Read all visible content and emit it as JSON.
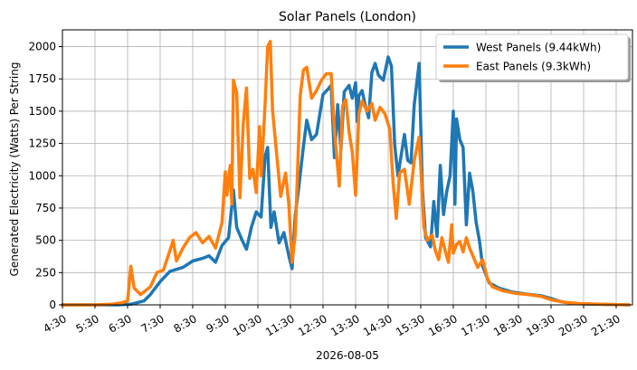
{
  "chart_data": {
    "type": "line",
    "title": "Solar Panels (London)",
    "xlabel": "2026-08-05",
    "ylabel": "Generated Electricity (Watts) Per String",
    "grid": true,
    "legend_position": "top-right",
    "xlim": [
      4.5,
      22.0
    ],
    "ylim": [
      0,
      2130
    ],
    "x_ticks": [
      {
        "value": 4.5,
        "label": "4:30"
      },
      {
        "value": 5.5,
        "label": "5:30"
      },
      {
        "value": 6.5,
        "label": "6:30"
      },
      {
        "value": 7.5,
        "label": "7:30"
      },
      {
        "value": 8.5,
        "label": "8:30"
      },
      {
        "value": 9.5,
        "label": "9:30"
      },
      {
        "value": 10.5,
        "label": "10:30"
      },
      {
        "value": 11.5,
        "label": "11:30"
      },
      {
        "value": 12.5,
        "label": "12:30"
      },
      {
        "value": 13.5,
        "label": "13:30"
      },
      {
        "value": 14.5,
        "label": "14:30"
      },
      {
        "value": 15.5,
        "label": "15:30"
      },
      {
        "value": 16.5,
        "label": "16:30"
      },
      {
        "value": 17.5,
        "label": "17:30"
      },
      {
        "value": 18.5,
        "label": "18:30"
      },
      {
        "value": 19.5,
        "label": "19:30"
      },
      {
        "value": 20.5,
        "label": "20:30"
      },
      {
        "value": 21.5,
        "label": "21:30"
      }
    ],
    "y_ticks": [
      {
        "value": 0,
        "label": "0"
      },
      {
        "value": 250,
        "label": "250"
      },
      {
        "value": 500,
        "label": "500"
      },
      {
        "value": 750,
        "label": "750"
      },
      {
        "value": 1000,
        "label": "1000"
      },
      {
        "value": 1250,
        "label": "1250"
      },
      {
        "value": 1500,
        "label": "1500"
      },
      {
        "value": 1750,
        "label": "1750"
      },
      {
        "value": 2000,
        "label": "2000"
      }
    ],
    "series": [
      {
        "name": "West Panels (9.44kWh)",
        "color": "#1f77b4",
        "points": [
          [
            4.5,
            0
          ],
          [
            5.5,
            0
          ],
          [
            6.2,
            0
          ],
          [
            6.6,
            5
          ],
          [
            7.0,
            30
          ],
          [
            7.2,
            80
          ],
          [
            7.5,
            180
          ],
          [
            7.8,
            260
          ],
          [
            8.2,
            290
          ],
          [
            8.5,
            340
          ],
          [
            8.8,
            360
          ],
          [
            9.0,
            380
          ],
          [
            9.2,
            330
          ],
          [
            9.4,
            460
          ],
          [
            9.6,
            520
          ],
          [
            9.75,
            890
          ],
          [
            9.85,
            600
          ],
          [
            10.0,
            510
          ],
          [
            10.15,
            430
          ],
          [
            10.3,
            600
          ],
          [
            10.45,
            720
          ],
          [
            10.6,
            680
          ],
          [
            10.72,
            1150
          ],
          [
            10.8,
            1220
          ],
          [
            10.9,
            600
          ],
          [
            11.0,
            720
          ],
          [
            11.15,
            480
          ],
          [
            11.3,
            560
          ],
          [
            11.45,
            380
          ],
          [
            11.55,
            280
          ],
          [
            11.65,
            700
          ],
          [
            11.75,
            900
          ],
          [
            11.9,
            1230
          ],
          [
            12.0,
            1430
          ],
          [
            12.15,
            1280
          ],
          [
            12.3,
            1320
          ],
          [
            12.5,
            1630
          ],
          [
            12.65,
            1670
          ],
          [
            12.75,
            1700
          ],
          [
            12.85,
            1140
          ],
          [
            12.95,
            1550
          ],
          [
            13.05,
            1200
          ],
          [
            13.15,
            1650
          ],
          [
            13.3,
            1700
          ],
          [
            13.4,
            1600
          ],
          [
            13.5,
            1720
          ],
          [
            13.55,
            1420
          ],
          [
            13.6,
            1620
          ],
          [
            13.7,
            1660
          ],
          [
            13.8,
            1540
          ],
          [
            13.9,
            1450
          ],
          [
            14.0,
            1800
          ],
          [
            14.1,
            1870
          ],
          [
            14.2,
            1780
          ],
          [
            14.35,
            1740
          ],
          [
            14.5,
            1920
          ],
          [
            14.6,
            1850
          ],
          [
            14.7,
            1240
          ],
          [
            14.8,
            1000
          ],
          [
            15.0,
            1320
          ],
          [
            15.1,
            1120
          ],
          [
            15.2,
            1100
          ],
          [
            15.3,
            1550
          ],
          [
            15.45,
            1870
          ],
          [
            15.55,
            900
          ],
          [
            15.65,
            520
          ],
          [
            15.8,
            450
          ],
          [
            15.9,
            800
          ],
          [
            16.0,
            530
          ],
          [
            16.1,
            1080
          ],
          [
            16.2,
            700
          ],
          [
            16.3,
            880
          ],
          [
            16.4,
            1000
          ],
          [
            16.5,
            1500
          ],
          [
            16.55,
            780
          ],
          [
            16.6,
            1440
          ],
          [
            16.7,
            1280
          ],
          [
            16.8,
            1220
          ],
          [
            16.9,
            620
          ],
          [
            17.0,
            1020
          ],
          [
            17.1,
            880
          ],
          [
            17.2,
            640
          ],
          [
            17.3,
            500
          ],
          [
            17.4,
            300
          ],
          [
            17.6,
            170
          ],
          [
            17.9,
            130
          ],
          [
            18.3,
            100
          ],
          [
            18.7,
            85
          ],
          [
            19.2,
            70
          ],
          [
            19.5,
            50
          ],
          [
            19.8,
            25
          ],
          [
            20.2,
            10
          ],
          [
            20.8,
            5
          ],
          [
            21.5,
            2
          ],
          [
            21.9,
            0
          ]
        ]
      },
      {
        "name": "East Panels (9.3kWh)",
        "color": "#ff7f0e",
        "points": [
          [
            4.5,
            0
          ],
          [
            5.5,
            0
          ],
          [
            6.0,
            5
          ],
          [
            6.3,
            15
          ],
          [
            6.5,
            30
          ],
          [
            6.6,
            300
          ],
          [
            6.7,
            130
          ],
          [
            6.9,
            80
          ],
          [
            7.2,
            140
          ],
          [
            7.4,
            250
          ],
          [
            7.6,
            270
          ],
          [
            7.8,
            420
          ],
          [
            7.9,
            500
          ],
          [
            8.0,
            340
          ],
          [
            8.2,
            440
          ],
          [
            8.4,
            520
          ],
          [
            8.6,
            560
          ],
          [
            8.8,
            480
          ],
          [
            9.0,
            530
          ],
          [
            9.2,
            440
          ],
          [
            9.4,
            640
          ],
          [
            9.5,
            1030
          ],
          [
            9.55,
            850
          ],
          [
            9.65,
            1080
          ],
          [
            9.7,
            780
          ],
          [
            9.75,
            1740
          ],
          [
            9.85,
            1640
          ],
          [
            9.95,
            830
          ],
          [
            10.05,
            1400
          ],
          [
            10.15,
            1680
          ],
          [
            10.25,
            980
          ],
          [
            10.35,
            1050
          ],
          [
            10.45,
            870
          ],
          [
            10.55,
            1380
          ],
          [
            10.6,
            1000
          ],
          [
            10.72,
            1540
          ],
          [
            10.8,
            2000
          ],
          [
            10.88,
            2040
          ],
          [
            10.95,
            1510
          ],
          [
            11.05,
            1240
          ],
          [
            11.2,
            840
          ],
          [
            11.35,
            1020
          ],
          [
            11.45,
            780
          ],
          [
            11.55,
            330
          ],
          [
            11.65,
            550
          ],
          [
            11.8,
            1620
          ],
          [
            11.9,
            1820
          ],
          [
            12.0,
            1840
          ],
          [
            12.15,
            1600
          ],
          [
            12.3,
            1660
          ],
          [
            12.45,
            1740
          ],
          [
            12.6,
            1790
          ],
          [
            12.75,
            1790
          ],
          [
            12.85,
            1350
          ],
          [
            13.0,
            920
          ],
          [
            13.1,
            1540
          ],
          [
            13.2,
            1590
          ],
          [
            13.3,
            1340
          ],
          [
            13.4,
            1180
          ],
          [
            13.5,
            850
          ],
          [
            13.6,
            1480
          ],
          [
            13.7,
            1580
          ],
          [
            13.85,
            1500
          ],
          [
            14.0,
            1560
          ],
          [
            14.1,
            1430
          ],
          [
            14.25,
            1530
          ],
          [
            14.4,
            1480
          ],
          [
            14.55,
            1360
          ],
          [
            14.65,
            950
          ],
          [
            14.75,
            670
          ],
          [
            14.85,
            1020
          ],
          [
            15.0,
            1050
          ],
          [
            15.15,
            780
          ],
          [
            15.3,
            1120
          ],
          [
            15.45,
            1300
          ],
          [
            15.6,
            600
          ],
          [
            15.7,
            500
          ],
          [
            15.85,
            540
          ],
          [
            15.95,
            420
          ],
          [
            16.05,
            350
          ],
          [
            16.15,
            520
          ],
          [
            16.25,
            420
          ],
          [
            16.35,
            330
          ],
          [
            16.45,
            620
          ],
          [
            16.5,
            400
          ],
          [
            16.6,
            470
          ],
          [
            16.7,
            490
          ],
          [
            16.8,
            410
          ],
          [
            16.9,
            520
          ],
          [
            17.0,
            440
          ],
          [
            17.1,
            380
          ],
          [
            17.25,
            290
          ],
          [
            17.4,
            350
          ],
          [
            17.55,
            200
          ],
          [
            17.7,
            140
          ],
          [
            18.0,
            110
          ],
          [
            18.4,
            90
          ],
          [
            18.8,
            80
          ],
          [
            19.2,
            65
          ],
          [
            19.5,
            40
          ],
          [
            19.9,
            20
          ],
          [
            20.4,
            10
          ],
          [
            21.0,
            5
          ],
          [
            21.9,
            0
          ]
        ]
      }
    ]
  }
}
